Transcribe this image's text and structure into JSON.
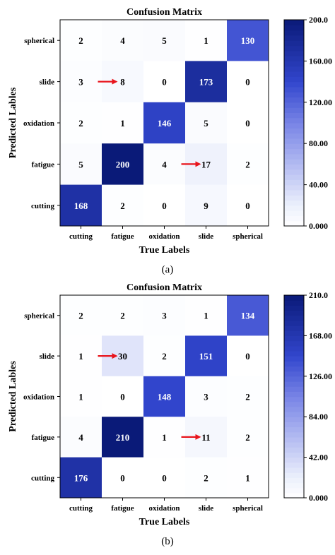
{
  "chart_data": [
    {
      "type": "heatmap",
      "title": "Confusion Matrix",
      "xlabel": "True Labels",
      "ylabel": "Predicted Lables",
      "x_categories": [
        "cutting",
        "fatigue",
        "oxidation",
        "slide",
        "spherical"
      ],
      "y_categories_top_to_bottom": [
        "spherical",
        "slide",
        "oxidation",
        "fatigue",
        "cutting"
      ],
      "values": [
        [
          2,
          4,
          5,
          1,
          130
        ],
        [
          3,
          8,
          0,
          173,
          0
        ],
        [
          2,
          1,
          146,
          5,
          0
        ],
        [
          5,
          200,
          4,
          17,
          2
        ],
        [
          168,
          2,
          0,
          9,
          0
        ]
      ],
      "colorbar": {
        "min": 0,
        "max": 200,
        "ticks": [
          "0.000",
          "40.00",
          "80.00",
          "120.00",
          "160.00",
          "200.0"
        ]
      },
      "colormap": {
        "low": "#ffffff",
        "high": "#0a1a78"
      },
      "arrows": [
        {
          "row": 1,
          "col": 1,
          "color": "#e8141c"
        },
        {
          "row": 3,
          "col": 3,
          "color": "#e8141c"
        }
      ],
      "caption": "(a)"
    },
    {
      "type": "heatmap",
      "title": "Confusion Matrix",
      "xlabel": "True Labels",
      "ylabel": "Predicted Lables",
      "x_categories": [
        "cutting",
        "fatigue",
        "oxidation",
        "slide",
        "spherical"
      ],
      "y_categories_top_to_bottom": [
        "spherical",
        "slide",
        "oxidation",
        "fatigue",
        "cutting"
      ],
      "values": [
        [
          2,
          2,
          3,
          1,
          134
        ],
        [
          1,
          30,
          2,
          151,
          0
        ],
        [
          1,
          0,
          148,
          3,
          2
        ],
        [
          4,
          210,
          1,
          11,
          2
        ],
        [
          176,
          0,
          0,
          2,
          1
        ]
      ],
      "colorbar": {
        "min": 0,
        "max": 210,
        "ticks": [
          "0.000",
          "42.00",
          "84.00",
          "126.00",
          "168.00",
          "210.0"
        ]
      },
      "colormap": {
        "low": "#ffffff",
        "high": "#0a1a78"
      },
      "arrows": [
        {
          "row": 1,
          "col": 1,
          "color": "#e8141c"
        },
        {
          "row": 3,
          "col": 3,
          "color": "#e8141c"
        }
      ],
      "caption": "(b)"
    }
  ]
}
